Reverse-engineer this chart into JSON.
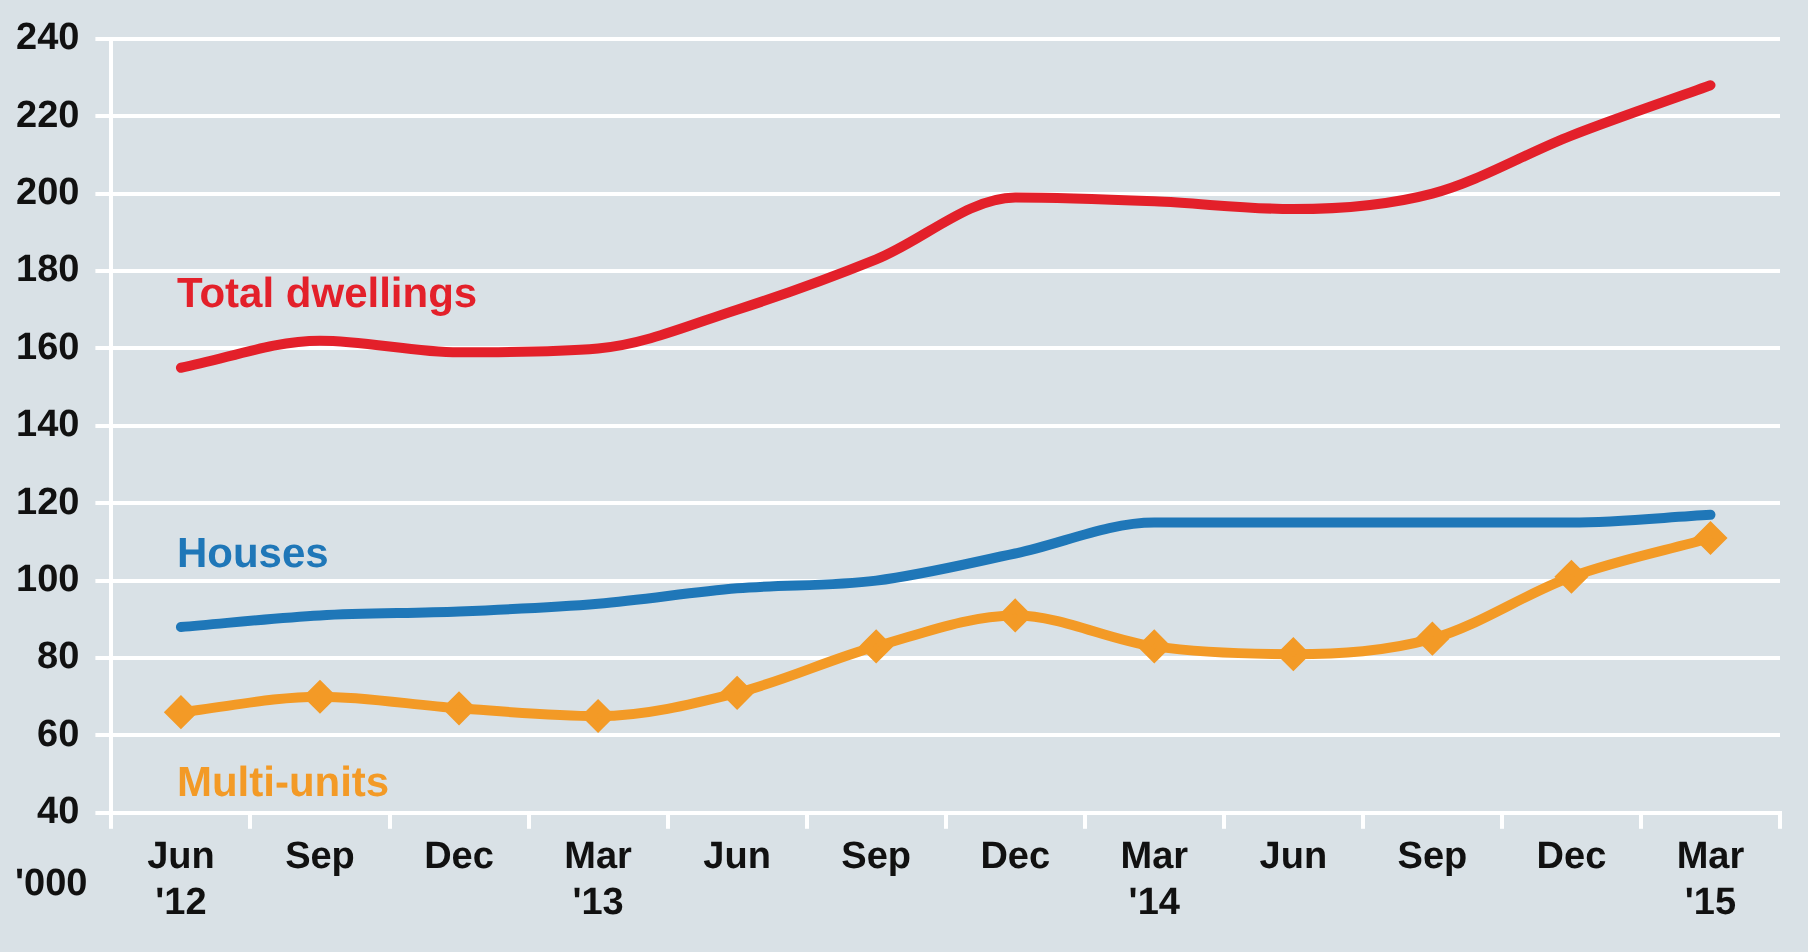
{
  "chart_data": {
    "type": "line",
    "ylabel": "'000",
    "categories": [
      "Jun '12",
      "Sep",
      "Dec",
      "Mar '13",
      "Jun",
      "Sep",
      "Dec",
      "Mar '14",
      "Jun",
      "Sep",
      "Dec",
      "Mar '15"
    ],
    "series": [
      {
        "name": "Total dwellings",
        "color": "#e3202a",
        "marker": "none",
        "values": [
          155,
          162,
          159,
          160,
          170,
          183,
          199,
          198,
          196,
          200,
          215,
          228
        ]
      },
      {
        "name": "Houses",
        "color": "#1f77b8",
        "marker": "none",
        "values": [
          88,
          91,
          92,
          94,
          98,
          100,
          107,
          115,
          115,
          115,
          115,
          117
        ]
      },
      {
        "name": "Multi-units",
        "color": "#f39a26",
        "marker": "diamond",
        "values": [
          66,
          70,
          67,
          65,
          71,
          83,
          91,
          83,
          81,
          85,
          101,
          111
        ]
      }
    ],
    "ylim": [
      40,
      240
    ],
    "yticks": [
      40,
      60,
      80,
      100,
      120,
      140,
      160,
      180,
      200,
      220,
      240
    ],
    "grid": "y",
    "legend": false
  }
}
